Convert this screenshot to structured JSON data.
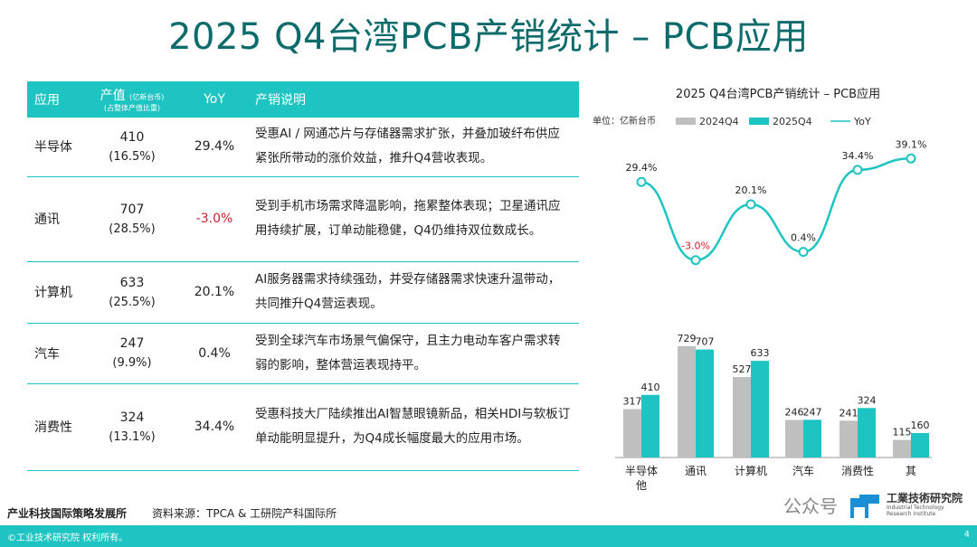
{
  "page": {
    "title": "2025 Q4台湾PCB产销统计 – PCB应用"
  },
  "table": {
    "headers": {
      "app": "应用",
      "value_main": "产值",
      "value_unit": "(亿新台币)",
      "value_sub": "(占整体产值比重)",
      "yoy": "YoY",
      "desc": "产销说明"
    },
    "rows": [
      {
        "app": "半导体",
        "value": "410",
        "share": "(16.5%)",
        "yoy": "29.4%",
        "negative": false,
        "desc": "受惠AI / 网通芯片与存储器需求扩张，并叠加玻纤布供应紧张所带动的涨价效益，推升Q4营收表现。"
      },
      {
        "app": "通讯",
        "value": "707",
        "share": "(28.5%)",
        "yoy": "-3.0%",
        "negative": true,
        "desc": "受到手机市场需求降温影响，拖累整体表现；卫星通讯应用持续扩展，订单动能稳健，Q4仍维持双位数成长。"
      },
      {
        "app": "计算机",
        "value": "633",
        "share": "(25.5%)",
        "yoy": "20.1%",
        "negative": false,
        "desc": "AI服务器需求持续强劲，并受存储器需求快速升温带动，共同推升Q4营运表现。"
      },
      {
        "app": "汽车",
        "value": "247",
        "share": "(9.9%)",
        "yoy": "0.4%",
        "negative": false,
        "desc": "受到全球汽车市场景气偏保守，且主力电动车客户需求转弱的影响，整体营运表现持平。"
      },
      {
        "app": "消费性",
        "value": "324",
        "share": "(13.1%)",
        "yoy": "34.4%",
        "negative": false,
        "desc": "受惠科技大厂陆续推出AI智慧眼镜新品，相关HDI与软板订单动能明显提升，为Q4成长幅度最大的应用市场。"
      }
    ]
  },
  "footer": {
    "org": "产业科技国际策略发展所",
    "source": "资料来源：TPCA & 工研院产科国际所",
    "copyright": "©工业技术研究院  权利所有。",
    "page_number": "4"
  },
  "watermark": {
    "text": "公众号",
    "inst_name": "工業技術研究院",
    "inst_en": "Industrial Technology Research Institute"
  },
  "colors": {
    "accent": "#1ec4c2",
    "title": "#0d6b6b",
    "bar_2024": "#bfbfbf",
    "bar_2025": "#1ec4c2",
    "line": "#1ec4c2",
    "negative": "#d0202a"
  },
  "chart_data": {
    "type": "bar",
    "title": "2025 Q4台湾PCB产销统计 – PCB应用",
    "unit_label": "单位：亿新台币",
    "categories": [
      "半导体\n他",
      "通讯",
      "计算机",
      "汽车",
      "消费性",
      "其"
    ],
    "series": [
      {
        "name": "2024Q4",
        "type": "bar",
        "values": [
          317,
          729,
          527,
          246,
          241,
          115
        ]
      },
      {
        "name": "2025Q4",
        "type": "bar",
        "values": [
          410,
          707,
          633,
          247,
          324,
          160
        ]
      },
      {
        "name": "YoY",
        "type": "line",
        "values": [
          29.4,
          -3.0,
          20.1,
          0.4,
          34.4,
          39.1
        ],
        "labels": [
          "29.4%",
          "-3.0%",
          "20.1%",
          "0.4%",
          "34.4%",
          "39.1%"
        ]
      }
    ],
    "ylim": [
      0,
      800
    ],
    "yoy_ylim": [
      -5,
      40
    ],
    "legend": "top"
  }
}
